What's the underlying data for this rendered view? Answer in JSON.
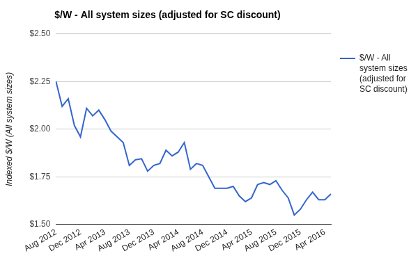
{
  "chart_data": {
    "type": "line",
    "title": "$/W - All system sizes (adjusted for SC discount)",
    "y_label": "Indexed $/W (All system sizes)",
    "categories": [
      "Aug 2012",
      null,
      null,
      null,
      "Dec 2012",
      null,
      null,
      null,
      "Apr 2013",
      null,
      null,
      null,
      "Aug 2013",
      null,
      null,
      null,
      "Dec 2013",
      null,
      null,
      null,
      "Apr 2014",
      null,
      null,
      null,
      "Aug 2014",
      null,
      null,
      null,
      "Dec 2014",
      null,
      null,
      null,
      "Apr 2015",
      null,
      null,
      null,
      "Aug 2015",
      null,
      null,
      null,
      "Dec 2015",
      null,
      null,
      null,
      "Apr 2016",
      null
    ],
    "series": [
      {
        "name": "$/W - All system sizes (adjusted for SC discount)",
        "color": "#3366cc",
        "values": [
          2.25,
          2.12,
          2.16,
          2.02,
          1.96,
          2.11,
          2.07,
          2.1,
          2.05,
          1.99,
          1.96,
          1.93,
          1.81,
          1.84,
          1.845,
          1.78,
          1.81,
          1.82,
          1.89,
          1.86,
          1.88,
          1.93,
          1.79,
          1.82,
          1.81,
          1.75,
          1.69,
          1.69,
          1.69,
          1.7,
          1.65,
          1.62,
          1.64,
          1.71,
          1.72,
          1.71,
          1.73,
          1.68,
          1.64,
          1.55,
          1.58,
          1.63,
          1.67,
          1.63,
          1.63,
          1.66
        ]
      }
    ],
    "ylim": [
      1.5,
      2.5
    ],
    "yticks": [
      {
        "value": 1.5,
        "label": "$1.50"
      },
      {
        "value": 1.75,
        "label": "$1.75"
      },
      {
        "value": 2,
        "label": "$2.00"
      },
      {
        "value": 2.25,
        "label": "$2.25"
      },
      {
        "value": 2.5,
        "label": "$2.50"
      }
    ],
    "grid": true,
    "legend": "right",
    "marker": "none"
  }
}
